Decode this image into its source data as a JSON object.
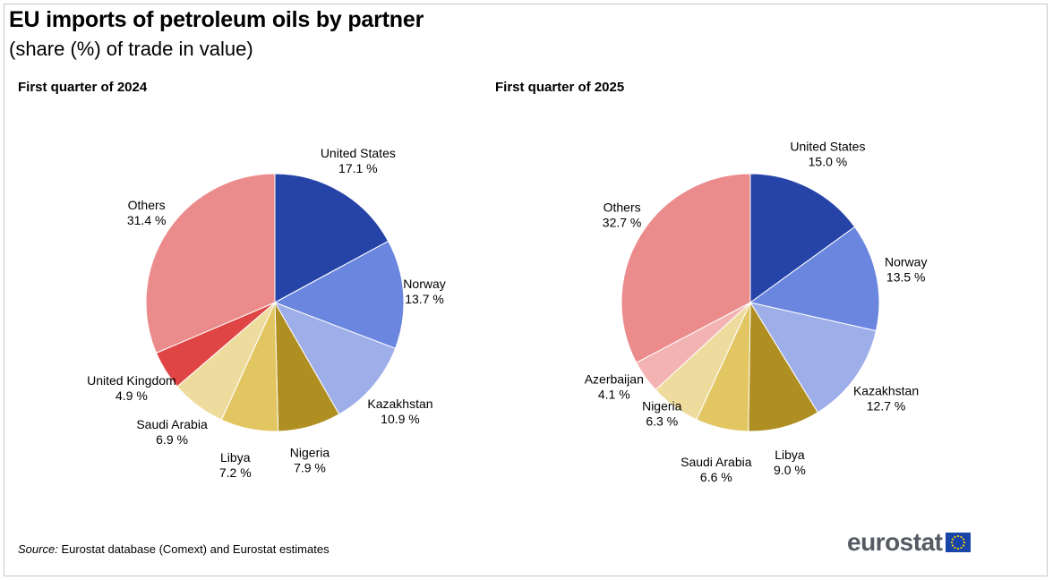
{
  "header": {
    "title": "EU imports of petroleum oils by partner",
    "subtitle": "(share (%) of trade in value)"
  },
  "footer": {
    "source_label": "Source:",
    "source_text": "Eurostat database (Comext) and Eurostat estimates",
    "logo_text": "eurostat"
  },
  "chart_data": [
    {
      "type": "pie",
      "title": "First quarter of 2024",
      "unit": "%",
      "slices": [
        {
          "label": "United States",
          "value": 17.1,
          "value_label": "17.1 %",
          "color": "#2644a8"
        },
        {
          "label": "Norway",
          "value": 13.7,
          "value_label": "13.7 %",
          "color": "#6b86df"
        },
        {
          "label": "Kazakhstan",
          "value": 10.9,
          "value_label": "10.9 %",
          "color": "#9eaee8"
        },
        {
          "label": "Nigeria",
          "value": 7.9,
          "value_label": "7.9 %",
          "color": "#b08f22"
        },
        {
          "label": "Libya",
          "value": 7.2,
          "value_label": "7.2 %",
          "color": "#e2c662"
        },
        {
          "label": "Saudi Arabia",
          "value": 6.9,
          "value_label": "6.9 %",
          "color": "#eedb9e"
        },
        {
          "label": "United Kingdom",
          "value": 4.9,
          "value_label": "4.9 %",
          "color": "#e04545"
        },
        {
          "label": "Others",
          "value": 31.4,
          "value_label": "31.4 %",
          "color": "#eb8b8b"
        }
      ]
    },
    {
      "type": "pie",
      "title": "First quarter of 2025",
      "unit": "%",
      "slices": [
        {
          "label": "United States",
          "value": 15.0,
          "value_label": "15.0 %",
          "color": "#2644a8"
        },
        {
          "label": "Norway",
          "value": 13.5,
          "value_label": "13.5 %",
          "color": "#6b86df"
        },
        {
          "label": "Kazakhstan",
          "value": 12.7,
          "value_label": "12.7 %",
          "color": "#9eaee8"
        },
        {
          "label": "Libya",
          "value": 9.0,
          "value_label": "9.0 %",
          "color": "#b08f22"
        },
        {
          "label": "Saudi Arabia",
          "value": 6.6,
          "value_label": "6.6 %",
          "color": "#e2c662"
        },
        {
          "label": "Nigeria",
          "value": 6.3,
          "value_label": "6.3 %",
          "color": "#eedb9e"
        },
        {
          "label": "Azerbaijan",
          "value": 4.1,
          "value_label": "4.1 %",
          "color": "#f3b3b3"
        },
        {
          "label": "Others",
          "value": 32.7,
          "value_label": "32.7 %",
          "color": "#eb8b8b"
        }
      ]
    }
  ]
}
